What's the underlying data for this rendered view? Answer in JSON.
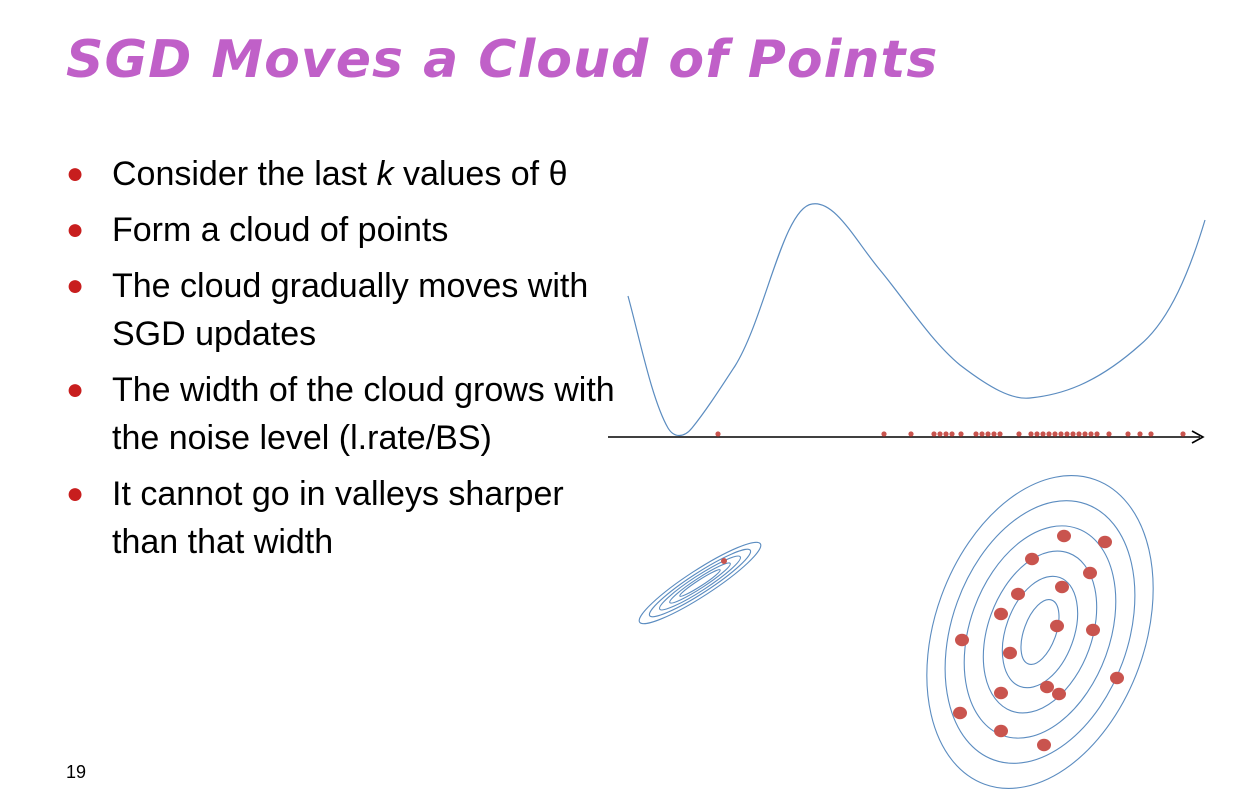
{
  "title": "SGD Moves a Cloud of Points",
  "bullets": [
    {
      "pre": "Consider the last ",
      "em": "k",
      "post": " values of θ"
    },
    {
      "pre": "Form a cloud of points",
      "em": "",
      "post": ""
    },
    {
      "pre": "The cloud gradually moves with SGD updates",
      "em": "",
      "post": ""
    },
    {
      "pre": "The width of the cloud grows with the noise level (l.rate/BS)",
      "em": "",
      "post": ""
    },
    {
      "pre": "It cannot go in valleys sharper than that width",
      "em": "",
      "post": ""
    }
  ],
  "slide_number": "19",
  "colors": {
    "title": "#c060c8",
    "bullet": "#c81e1e",
    "curve": "#5b8cc0",
    "points": "#c9544e"
  }
}
